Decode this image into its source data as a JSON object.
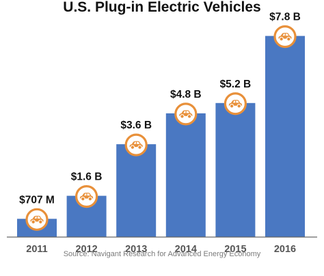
{
  "chart_data": {
    "type": "bar",
    "title": "U.S. Plug-in Electric Vehicles",
    "categories": [
      "2011",
      "2012",
      "2013",
      "2014",
      "2015",
      "2016"
    ],
    "values": [
      0.707,
      1.6,
      3.6,
      4.8,
      5.2,
      7.8
    ],
    "value_unit": "billion USD",
    "data_labels": [
      "$707 M",
      "$1.6 B",
      "$3.6 B",
      "$4.8 B",
      "$5.2 B",
      "$7.8 B"
    ],
    "xlabel": "",
    "ylabel": "",
    "ylim": [
      0,
      8.4
    ],
    "grid": false,
    "legend": "none",
    "source": "Source: Navigant Research for Advanced Energy Economy",
    "marker_icon": "car-icon"
  },
  "colors": {
    "bar": "#4a78c2",
    "badge_ring": "#e8903a",
    "badge_fill": "#ffffff",
    "car": "#e8903a",
    "axis": "#666666"
  }
}
